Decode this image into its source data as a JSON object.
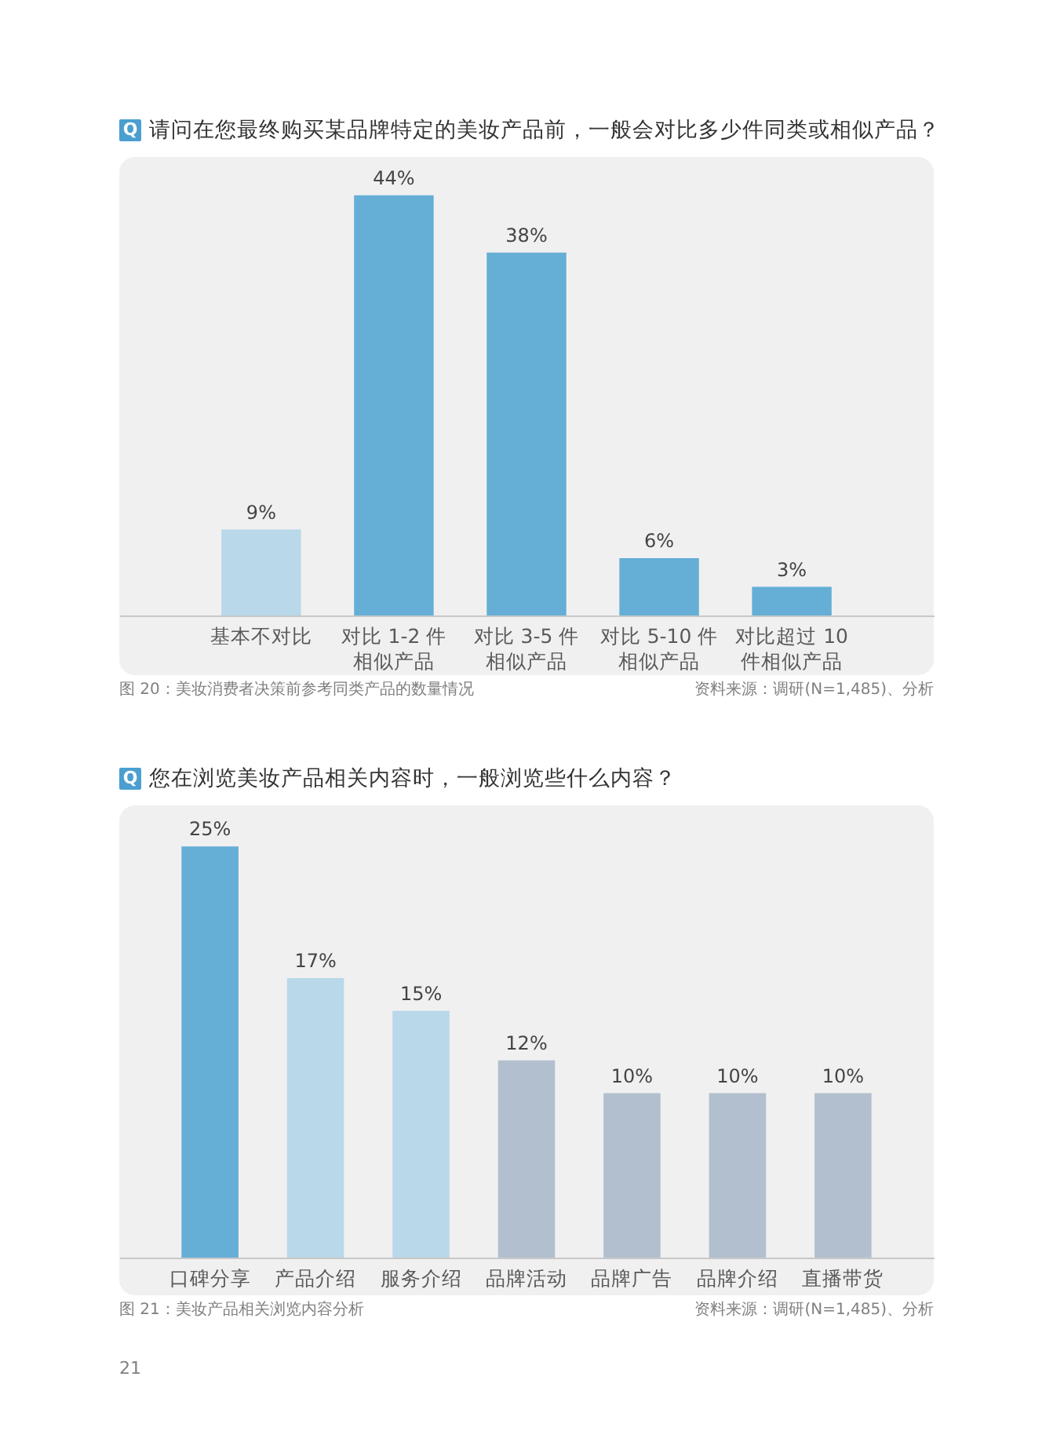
{
  "chart_data": [
    {
      "type": "bar",
      "title": "请问在您最终购买某品牌特定的美妆产品前，一般会对比多少件同类或相似产品？",
      "categories": [
        "基本不对比",
        "对比 1-2 件相似产品",
        "对比 3-5 件相似产品",
        "对比 5-10 件相似产品",
        "对比超过 10 件相似产品"
      ],
      "values": [
        9,
        44,
        38,
        6,
        3
      ],
      "value_labels": [
        "9%",
        "44%",
        "38%",
        "6%",
        "3%"
      ],
      "colors": [
        "#b9d8e9",
        "#65aed6",
        "#65aed6",
        "#65aed6",
        "#65aed6"
      ],
      "ylim": [
        0,
        48
      ],
      "tick_labels": "x",
      "annotations": [
        "Q",
        "图 20：美妆消费者决策前参考同类产品的数量情况",
        "资料来源：调研(N=1,485)、分析"
      ]
    },
    {
      "type": "bar",
      "title": "您在浏览美妆产品相关内容时，一般浏览些什么内容？",
      "categories": [
        "口碑分享",
        "产品介绍",
        "服务介绍",
        "品牌活动",
        "品牌广告",
        "品牌介绍",
        "直播带货"
      ],
      "values": [
        25,
        17,
        15,
        12,
        10,
        10,
        10
      ],
      "value_labels": [
        "25%",
        "17%",
        "15%",
        "12%",
        "10%",
        "10%",
        "10%"
      ],
      "colors": [
        "#65aed6",
        "#b9d8e9",
        "#b9d8e9",
        "#b2bfce",
        "#b2bfce",
        "#b2bfce",
        "#b2bfce"
      ],
      "ylim": [
        0,
        27.5
      ],
      "tick_labels": "x",
      "annotations": [
        "Q",
        "图 21：美妆产品相关浏览内容分析",
        "资料来源：调研(N=1,485)、分析",
        "21"
      ]
    }
  ]
}
